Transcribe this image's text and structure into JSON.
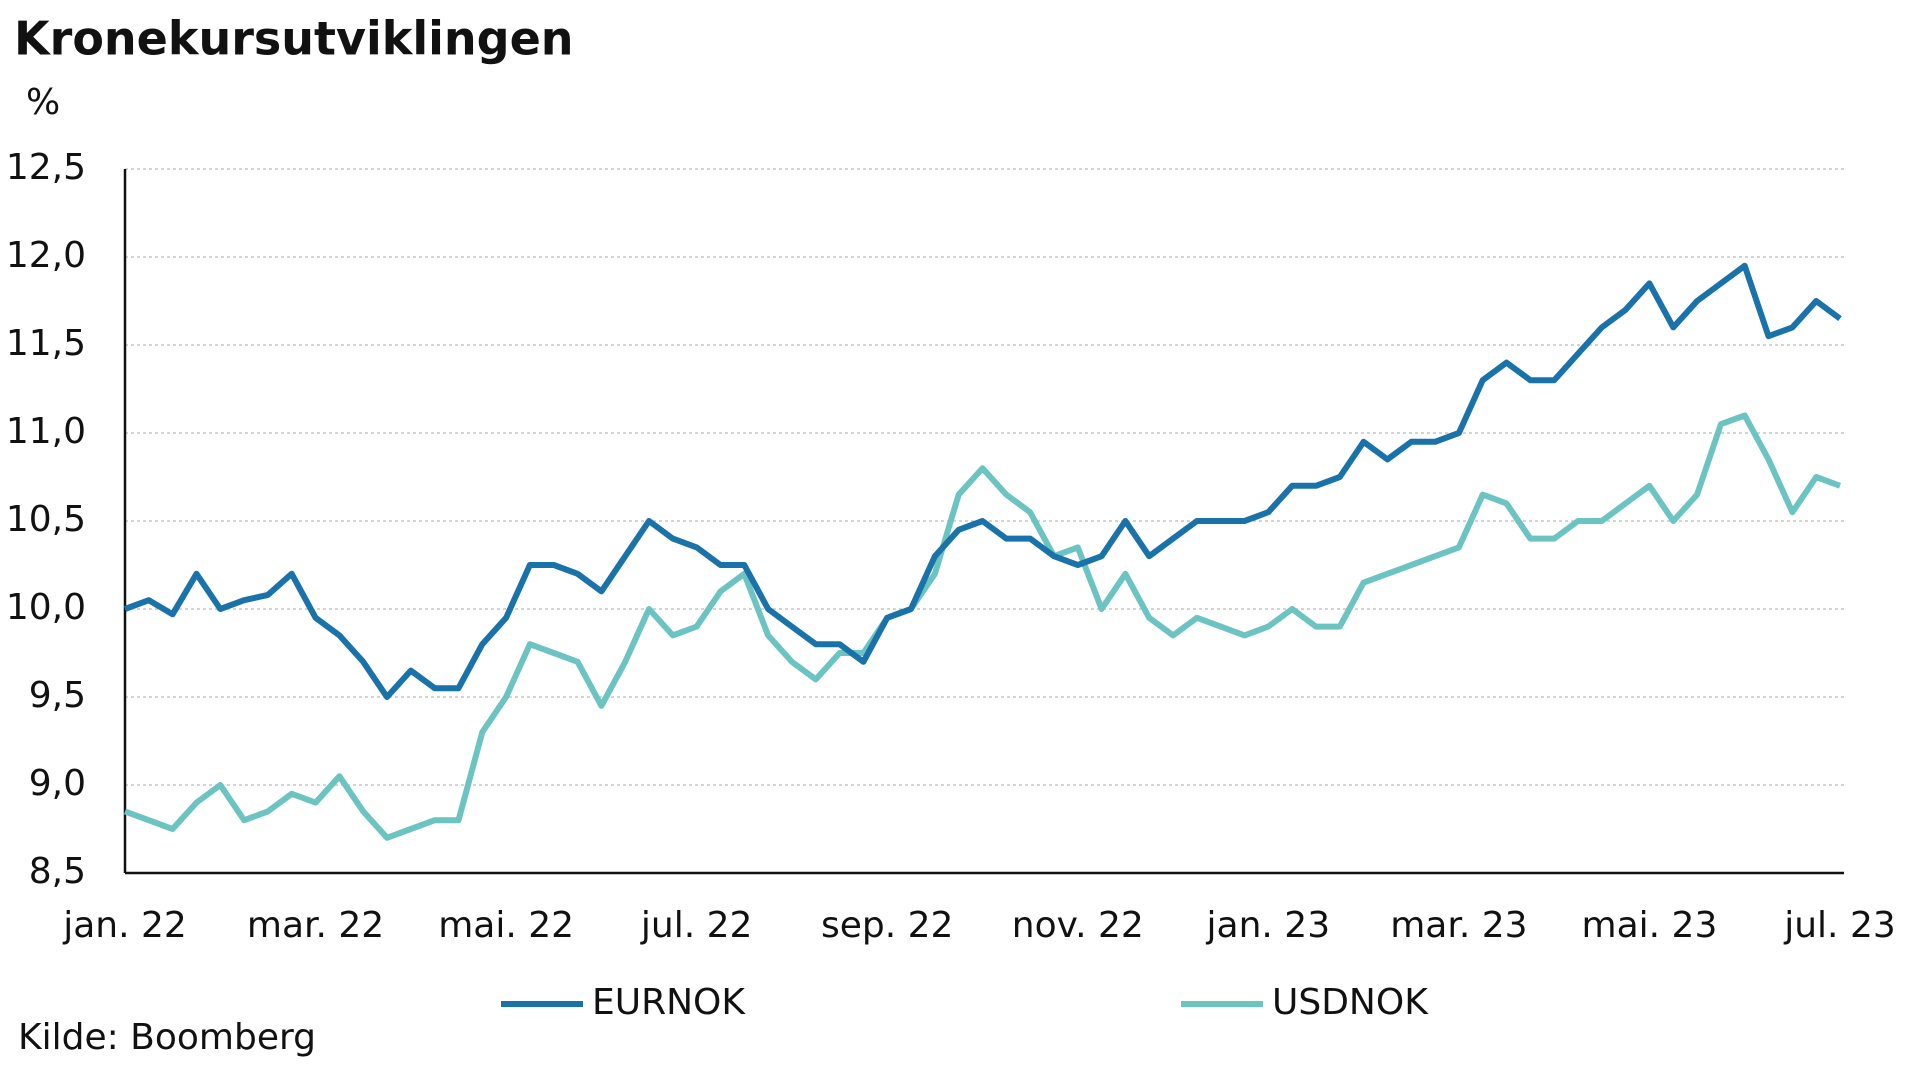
{
  "chart_data": {
    "type": "line",
    "title": "Kronekursutviklingen",
    "y_label": "%",
    "source": "Kilde: Boomberg",
    "categories": [
      "jan. 22",
      null,
      null,
      null,
      null,
      null,
      null,
      null,
      "mar. 22",
      null,
      null,
      null,
      null,
      null,
      null,
      null,
      "mai. 22",
      null,
      null,
      null,
      null,
      null,
      null,
      null,
      "jul. 22",
      null,
      null,
      null,
      null,
      null,
      null,
      null,
      "sep. 22",
      null,
      null,
      null,
      null,
      null,
      null,
      null,
      "nov. 22",
      null,
      null,
      null,
      null,
      null,
      null,
      null,
      "jan. 23",
      null,
      null,
      null,
      null,
      null,
      null,
      null,
      "mar. 23",
      null,
      null,
      null,
      null,
      null,
      null,
      null,
      "mai. 23",
      null,
      null,
      null,
      null,
      null,
      null,
      null,
      "jul. 23"
    ],
    "series": [
      {
        "name": "EURNOK",
        "color": "#1a72aa",
        "values": [
          10.0,
          10.05,
          9.97,
          10.2,
          10.0,
          10.05,
          10.08,
          10.2,
          9.95,
          9.85,
          9.7,
          9.5,
          9.65,
          9.55,
          9.55,
          9.8,
          9.95,
          10.25,
          10.25,
          10.2,
          10.1,
          10.3,
          10.5,
          10.4,
          10.35,
          10.25,
          10.25,
          10.0,
          9.9,
          9.8,
          9.8,
          9.7,
          9.95,
          10.0,
          10.3,
          10.45,
          10.5,
          10.4,
          10.4,
          10.3,
          10.25,
          10.3,
          10.5,
          10.3,
          10.4,
          10.5,
          10.5,
          10.5,
          10.55,
          10.7,
          10.7,
          10.75,
          10.95,
          10.85,
          10.95,
          10.95,
          11.0,
          11.3,
          11.4,
          11.3,
          11.3,
          11.45,
          11.6,
          11.7,
          11.85,
          11.6,
          11.75,
          11.85,
          11.95,
          11.55,
          11.6,
          11.75,
          11.65
        ]
      },
      {
        "name": "USDNOK",
        "color": "#6cc4c2",
        "values": [
          8.85,
          8.8,
          8.75,
          8.9,
          9.0,
          8.8,
          8.85,
          8.95,
          8.9,
          9.05,
          8.85,
          8.7,
          8.75,
          8.8,
          8.8,
          9.3,
          9.5,
          9.8,
          9.75,
          9.7,
          9.45,
          9.7,
          10.0,
          9.85,
          9.9,
          10.1,
          10.2,
          9.85,
          9.7,
          9.6,
          9.75,
          9.75,
          9.95,
          10.0,
          10.2,
          10.65,
          10.8,
          10.65,
          10.55,
          10.3,
          10.35,
          10.0,
          10.2,
          9.95,
          9.85,
          9.95,
          9.9,
          9.85,
          9.9,
          10.0,
          9.9,
          9.9,
          10.15,
          10.2,
          10.25,
          10.3,
          10.35,
          10.65,
          10.6,
          10.4,
          10.4,
          10.5,
          10.5,
          10.6,
          10.7,
          10.5,
          10.65,
          11.05,
          11.1,
          10.85,
          10.55,
          10.75,
          10.7
        ]
      }
    ],
    "ylim": [
      8.5,
      12.5
    ],
    "yticks": [
      {
        "value": 8.5,
        "label": "8,5"
      },
      {
        "value": 9.0,
        "label": "9,0"
      },
      {
        "value": 9.5,
        "label": "9,5"
      },
      {
        "value": 10.0,
        "label": "10,0"
      },
      {
        "value": 10.5,
        "label": "10,5"
      },
      {
        "value": 11.0,
        "label": "11,0"
      },
      {
        "value": 11.5,
        "label": "11,5"
      },
      {
        "value": 12.0,
        "label": "12,0"
      },
      {
        "value": 12.5,
        "label": "12,5"
      }
    ],
    "grid": true,
    "legend": "bottom"
  }
}
